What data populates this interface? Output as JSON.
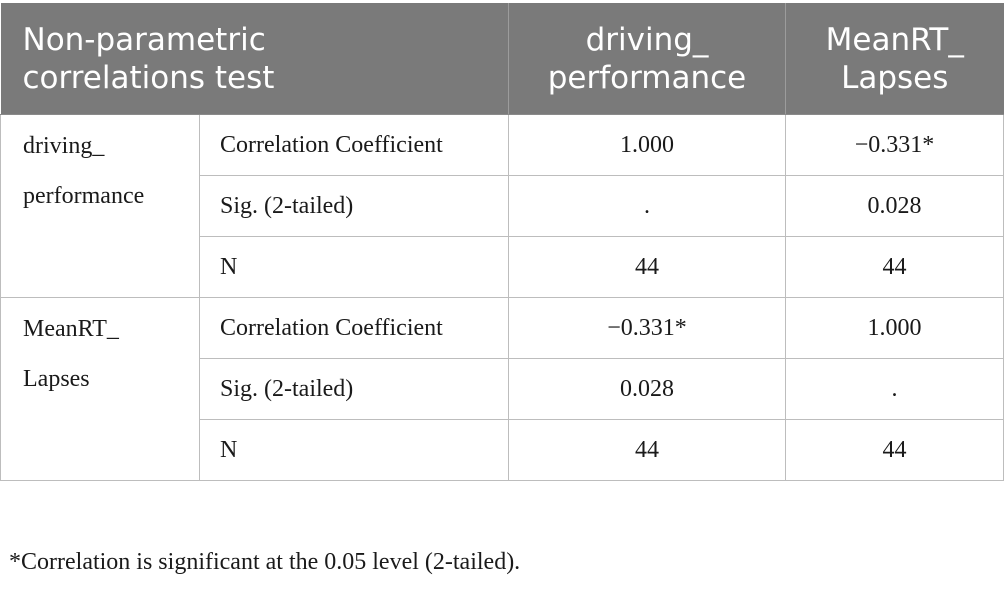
{
  "header": {
    "label_line1": "Non-parametric",
    "label_line2": "correlations test",
    "col1_line1": "driving_",
    "col1_line2": "performance",
    "col2_line1": "MeanRT_",
    "col2_line2": "Lapses"
  },
  "groups": [
    {
      "label_line1": "driving_",
      "label_line2": "performance",
      "rows": [
        {
          "stat": "Correlation Coefficient",
          "col1": "1.000",
          "col2": "−0.331*"
        },
        {
          "stat": "Sig. (2-tailed)",
          "col1": ".",
          "col2": "0.028"
        },
        {
          "stat": "N",
          "col1": "44",
          "col2": "44"
        }
      ]
    },
    {
      "label_line1": "MeanRT_",
      "label_line2": "Lapses",
      "rows": [
        {
          "stat": "Correlation Coefficient",
          "col1": "−0.331*",
          "col2": "1.000"
        },
        {
          "stat": "Sig. (2-tailed)",
          "col1": "0.028",
          "col2": "."
        },
        {
          "stat": "N",
          "col1": "44",
          "col2": "44"
        }
      ]
    }
  ],
  "footnote": "*Correlation is significant at the 0.05 level (2-tailed)."
}
